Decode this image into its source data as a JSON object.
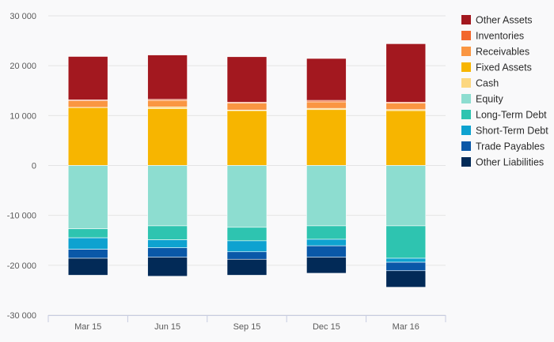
{
  "chart_data": {
    "type": "bar",
    "stacked": true,
    "title": "",
    "xlabel": "",
    "ylabel": "",
    "categories": [
      "Mar 15",
      "Jun 15",
      "Sep 15",
      "Dec 15",
      "Mar 16"
    ],
    "ylim": [
      -30000,
      30000
    ],
    "yticks": [
      30000,
      20000,
      10000,
      0,
      -10000,
      -20000,
      -30000
    ],
    "ytick_labels": [
      "30 000",
      "20 000",
      "10 000",
      "0",
      "-10 000",
      "-20 000",
      "-30 000"
    ],
    "grid": true,
    "legend_position": "right",
    "positive_series": [
      {
        "name": "Fixed Assets",
        "color": "#f7b500",
        "values": [
          11600,
          11400,
          11000,
          11200,
          11000
        ]
      },
      {
        "name": "Cash",
        "color": "#fcd77f",
        "values": [
          50,
          350,
          100,
          250,
          200
        ]
      },
      {
        "name": "Receivables",
        "color": "#fa9642",
        "values": [
          1300,
          1300,
          1400,
          1300,
          1300
        ]
      },
      {
        "name": "Inventories",
        "color": "#f2672c",
        "values": [
          200,
          200,
          200,
          300,
          200
        ]
      },
      {
        "name": "Other Assets",
        "color": "#a3181f",
        "values": [
          8700,
          8900,
          9100,
          8400,
          11700
        ]
      }
    ],
    "negative_series": [
      {
        "name": "Equity",
        "color": "#8dddd0",
        "values": [
          -12700,
          -12100,
          -12400,
          -12100,
          -12100
        ]
      },
      {
        "name": "Long-Term Debt",
        "color": "#2ec4b0",
        "values": [
          -1800,
          -2800,
          -2700,
          -2700,
          -6500
        ]
      },
      {
        "name": "Short-Term Debt",
        "color": "#0ea2d0",
        "values": [
          -2300,
          -1600,
          -2200,
          -1300,
          -800
        ]
      },
      {
        "name": "Trade Payables",
        "color": "#0a58a8",
        "values": [
          -1800,
          -1900,
          -1500,
          -2300,
          -1700
        ]
      },
      {
        "name": "Other Liabilities",
        "color": "#022a57",
        "values": [
          -3400,
          -3800,
          -3200,
          -3200,
          -3300
        ]
      }
    ],
    "legend": [
      {
        "name": "Other Assets",
        "color": "#a3181f"
      },
      {
        "name": "Inventories",
        "color": "#f2672c"
      },
      {
        "name": "Receivables",
        "color": "#fa9642"
      },
      {
        "name": "Fixed Assets",
        "color": "#f7b500"
      },
      {
        "name": "Cash",
        "color": "#fcd77f"
      },
      {
        "name": "Equity",
        "color": "#8dddd0"
      },
      {
        "name": "Long-Term Debt",
        "color": "#2ec4b0"
      },
      {
        "name": "Short-Term Debt",
        "color": "#0ea2d0"
      },
      {
        "name": "Trade Payables",
        "color": "#0a58a8"
      },
      {
        "name": "Other Liabilities",
        "color": "#022a57"
      }
    ],
    "colors": {
      "background": "#f9f9fa",
      "gridline": "#e4e4e4",
      "axis": "#c6cbe0"
    }
  }
}
